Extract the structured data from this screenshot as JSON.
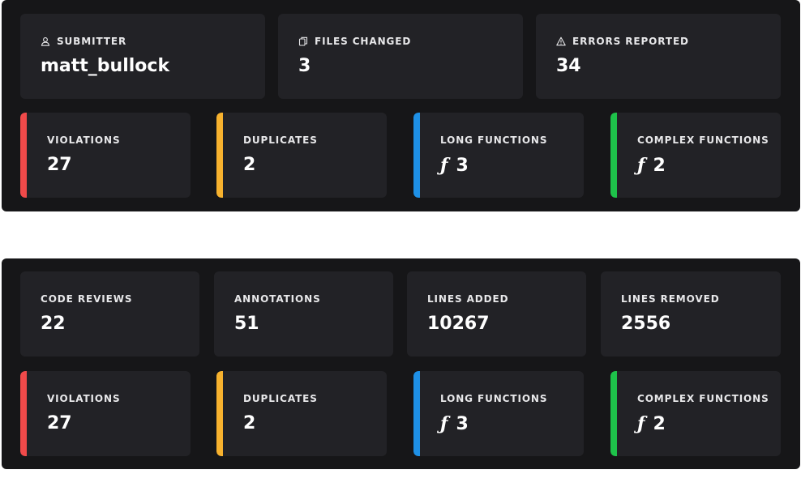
{
  "top_panel": {
    "header_cards": [
      {
        "label": "SUBMITTER",
        "value": "matt_bullock",
        "icon": "user-icon"
      },
      {
        "label": "FILES CHANGED",
        "value": "3",
        "icon": "files-icon"
      },
      {
        "label": "ERRORS REPORTED",
        "value": "34",
        "icon": "warning-icon"
      }
    ],
    "metric_cards": [
      {
        "label": "VIOLATIONS",
        "value": "27",
        "accent": "#f04a4a"
      },
      {
        "label": "DUPLICATES",
        "value": "2",
        "accent": "#f7b22e"
      },
      {
        "label": "LONG FUNCTIONS",
        "value": "3",
        "accent": "#1e90e6",
        "glyph": "ƒ"
      },
      {
        "label": "COMPLEX FUNCTIONS",
        "value": "2",
        "accent": "#1ec24a",
        "glyph": "ƒ"
      }
    ]
  },
  "bottom_panel": {
    "header_cards": [
      {
        "label": "CODE REVIEWS",
        "value": "22"
      },
      {
        "label": "ANNOTATIONS",
        "value": "51"
      },
      {
        "label": "LINES ADDED",
        "value": "10267"
      },
      {
        "label": "LINES REMOVED",
        "value": "2556"
      }
    ],
    "metric_cards": [
      {
        "label": "VIOLATIONS",
        "value": "27",
        "accent": "#f04a4a"
      },
      {
        "label": "DUPLICATES",
        "value": "2",
        "accent": "#f7b22e"
      },
      {
        "label": "LONG FUNCTIONS",
        "value": "3",
        "accent": "#1e90e6",
        "glyph": "ƒ"
      },
      {
        "label": "COMPLEX FUNCTIONS",
        "value": "2",
        "accent": "#1ec24a",
        "glyph": "ƒ"
      }
    ]
  }
}
